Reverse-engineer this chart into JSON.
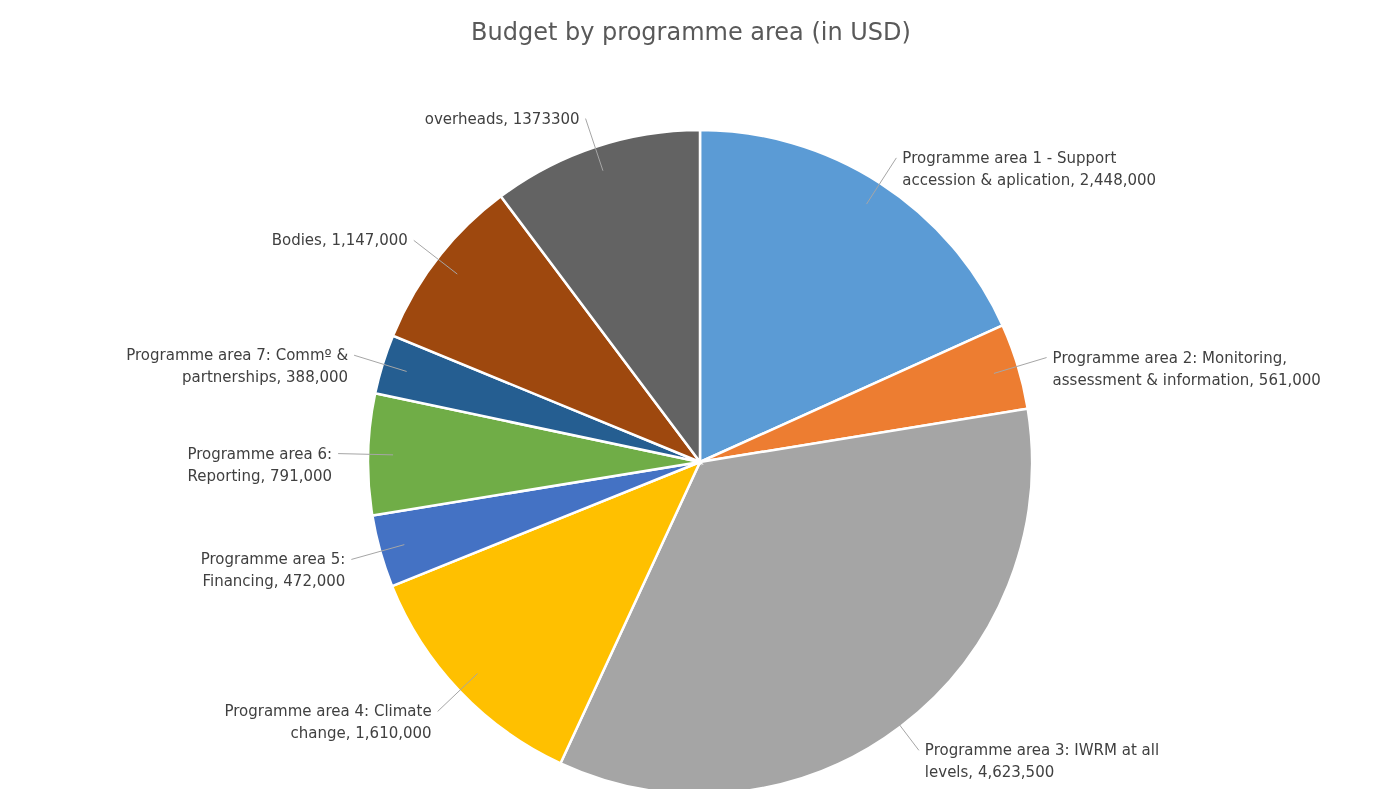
{
  "chart_data": {
    "type": "pie",
    "title": "Budget by programme area (in USD)",
    "categories": [
      "Programme area 1 - Support accession & aplication",
      "Programme area 2: Monitoring, assessment & information",
      "Programme area 3: IWRM at all levels",
      "Programme area 4: Climate change",
      "Programme area 5:  Financing",
      "Programme area 6: Reporting",
      "Programme area 7: Commº & partnerships ",
      "Bodies",
      "overheads"
    ],
    "values": [
      2448000,
      561000,
      4623500,
      1610000,
      472000,
      791000,
      388000,
      1147000,
      1373300
    ],
    "value_labels": [
      "2,448,000",
      "561,000",
      "4,623,500",
      "1,610,000",
      "472,000",
      "791,000",
      "388,000",
      "1,147,000",
      "1373300"
    ],
    "colors": [
      "#5b9bd5",
      "#ed7d31",
      "#a5a5a5",
      "#ffc000",
      "#4472c4",
      "#70ad47",
      "#255e91",
      "#9e480e",
      "#636363"
    ],
    "legend": false
  }
}
